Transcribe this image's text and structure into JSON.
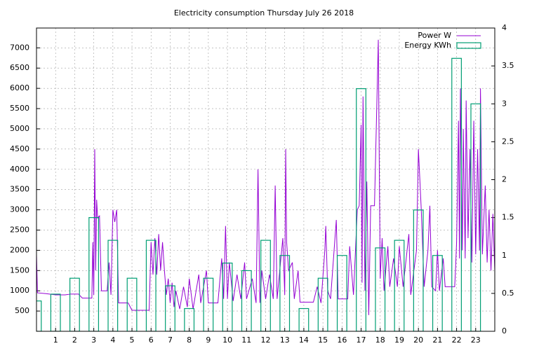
{
  "chart_data": {
    "type": "line",
    "title": "Electricity consumption Thursday July 26 2018",
    "xlim": [
      0,
      24
    ],
    "xticks": [
      1,
      2,
      3,
      4,
      5,
      6,
      7,
      8,
      9,
      10,
      11,
      12,
      13,
      14,
      15,
      16,
      17,
      18,
      19,
      20,
      21,
      22,
      23
    ],
    "ylim": [
      0,
      7490
    ],
    "yticks": [
      500,
      1000,
      1500,
      2000,
      2500,
      3000,
      3500,
      4000,
      4500,
      5000,
      5500,
      6000,
      6500,
      7000
    ],
    "y2lim": [
      0,
      4
    ],
    "y2ticks": [
      0,
      0.5,
      1,
      1.5,
      2,
      2.5,
      3,
      3.5,
      4
    ],
    "grid": true,
    "legend": "top-right",
    "series": [
      {
        "name": "Power W",
        "color": "#9400d3",
        "type": "line",
        "x": [
          0,
          0.05,
          0.5,
          1.0,
          1.5,
          1.8,
          2.2,
          2.4,
          2.9,
          2.95,
          3.0,
          3.05,
          3.1,
          3.15,
          3.2,
          3.3,
          3.4,
          3.7,
          3.8,
          3.9,
          4.0,
          4.1,
          4.2,
          4.3,
          4.8,
          5.0,
          5.9,
          6.0,
          6.1,
          6.2,
          6.3,
          6.4,
          6.5,
          6.6,
          6.7,
          6.8,
          6.9,
          7.0,
          7.1,
          7.2,
          7.3,
          7.5,
          7.7,
          7.9,
          8.0,
          8.2,
          8.5,
          8.6,
          8.9,
          9.0,
          9.5,
          9.7,
          9.8,
          9.9,
          10.0,
          10.1,
          10.3,
          10.5,
          10.7,
          10.9,
          11.0,
          11.3,
          11.5,
          11.6,
          11.7,
          11.8,
          12.0,
          12.2,
          12.4,
          12.5,
          12.6,
          12.9,
          13.0,
          13.05,
          13.1,
          13.2,
          13.4,
          13.5,
          13.7,
          13.8,
          14.5,
          14.7,
          14.9,
          15.1,
          15.15,
          15.25,
          15.4,
          15.7,
          15.8,
          16.3,
          16.4,
          16.6,
          16.8,
          16.9,
          17.0,
          17.05,
          17.1,
          17.2,
          17.3,
          17.4,
          17.5,
          17.7,
          17.8,
          17.9,
          17.95,
          18.0,
          18.1,
          18.2,
          18.4,
          18.5,
          18.7,
          18.9,
          19.0,
          19.2,
          19.5,
          19.6,
          19.9,
          20.0,
          20.1,
          20.15,
          20.3,
          20.5,
          20.6,
          20.7,
          20.9,
          21.0,
          21.1,
          21.3,
          21.4,
          21.9,
          21.95,
          22.0,
          22.1,
          22.15,
          22.2,
          22.3,
          22.35,
          22.45,
          22.5,
          22.6,
          22.7,
          22.8,
          22.9,
          23.0,
          23.1,
          23.2,
          23.25,
          23.35,
          23.5,
          23.6,
          23.7,
          23.8,
          23.9,
          24.0
        ],
        "values": [
          1900,
          950,
          930,
          900,
          900,
          920,
          920,
          820,
          820,
          2200,
          900,
          4500,
          1500,
          3250,
          2800,
          2850,
          1000,
          1000,
          1700,
          900,
          3000,
          2700,
          3000,
          700,
          700,
          520,
          520,
          2200,
          1400,
          2300,
          1400,
          2400,
          1500,
          2200,
          1500,
          900,
          1300,
          700,
          1200,
          600,
          1000,
          550,
          1100,
          600,
          1300,
          550,
          1400,
          700,
          1500,
          700,
          700,
          1800,
          800,
          2600,
          800,
          1700,
          750,
          1400,
          800,
          1700,
          800,
          1300,
          700,
          4000,
          700,
          1500,
          800,
          1400,
          800,
          3600,
          800,
          2300,
          900,
          4500,
          2200,
          1500,
          1700,
          800,
          1500,
          720,
          720,
          1100,
          700,
          2000,
          2600,
          1000,
          800,
          2750,
          800,
          800,
          2100,
          900,
          3000,
          3100,
          5100,
          1200,
          5800,
          1000,
          3700,
          400,
          3100,
          3100,
          5150,
          7200,
          4200,
          1300,
          2300,
          1000,
          2100,
          1100,
          1800,
          1100,
          2100,
          1100,
          2400,
          900,
          2000,
          4500,
          3500,
          3000,
          1100,
          2000,
          3100,
          1100,
          1000,
          2000,
          1000,
          1800,
          1100,
          1100,
          1600,
          2200,
          5200,
          1800,
          6000,
          2000,
          5000,
          1800,
          5700,
          2300,
          4500,
          1700,
          5200,
          1900,
          4500,
          2000,
          6000,
          1900,
          3600,
          1700,
          3000,
          1500,
          2900,
          1500
        ]
      },
      {
        "name": "Energy KWh",
        "color": "#009e73",
        "type": "bar",
        "axis": "y2",
        "x": [
          0,
          1,
          2,
          3,
          4,
          5,
          6,
          7,
          8,
          9,
          10,
          11,
          12,
          13,
          14,
          15,
          16,
          17,
          18,
          19,
          20,
          21,
          22,
          23
        ],
        "values": [
          0.4,
          0.49,
          0.7,
          1.5,
          1.2,
          0.7,
          1.2,
          0.6,
          0.3,
          0.7,
          0.9,
          0.8,
          1.2,
          1.0,
          0.3,
          0.7,
          1.0,
          3.2,
          1.1,
          1.2,
          1.6,
          1.0,
          3.6,
          3.0
        ]
      }
    ]
  }
}
